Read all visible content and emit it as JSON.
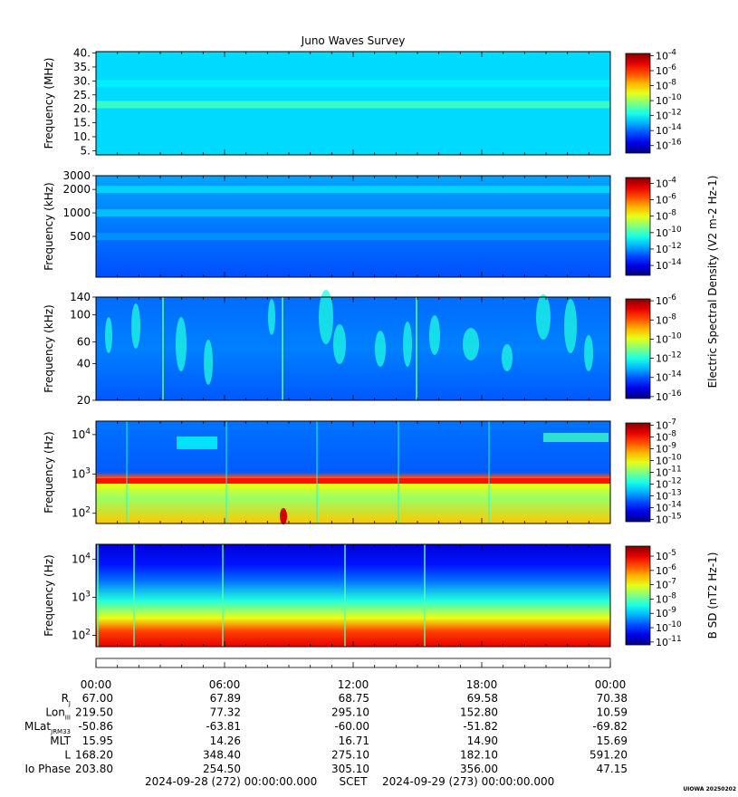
{
  "title": "Juno Waves Survey",
  "chart_data": [
    {
      "type": "heatmap",
      "ylabel": "Frequency (MHz)",
      "y_ticks": [
        "40.",
        "35.",
        "30.",
        "25.",
        "20.",
        "15.",
        "10.",
        "5."
      ],
      "yscale": "linear",
      "ylim": [
        3.5,
        40.5
      ],
      "colorbar_ticks": [
        "10^-4",
        "10^-6",
        "10^-8",
        "10^-10",
        "10^-12",
        "10^-14",
        "10^-16"
      ],
      "colorbar_range": [
        -17,
        -3.7
      ],
      "background_level": -12.5,
      "bands": [
        {
          "freq": 21.5,
          "level": -11.2
        },
        {
          "freq": 29,
          "level": -12.2
        }
      ]
    },
    {
      "type": "heatmap",
      "ylabel": "Frequency (kHz)",
      "y_ticks": [
        "3000",
        "2000",
        "1000",
        "500"
      ],
      "yscale": "log",
      "ylim": [
        150,
        3000
      ],
      "colorbar_ticks": [
        "10^-4",
        "10^-6",
        "10^-8",
        "10^-10",
        "10^-12",
        "10^-14"
      ],
      "colorbar_label": "Electric Spectral Density (V^2 m^-2 Hz^-1)",
      "colorbar_range": [
        -15.2,
        -3.3
      ],
      "background_level": -12.3,
      "bands": [
        {
          "freq": 2000,
          "level": -11.2
        },
        {
          "freq": 1000,
          "level": -11.4
        },
        {
          "freq": 500,
          "level": -12.0
        }
      ]
    },
    {
      "type": "heatmap",
      "ylabel": "Frequency (kHz)",
      "y_ticks": [
        "140",
        "100",
        "60",
        "40",
        "20"
      ],
      "yscale": "log",
      "ylim": [
        20,
        140
      ],
      "colorbar_ticks": [
        "10^-6",
        "10^-8",
        "10^-10",
        "10^-12",
        "10^-14",
        "10^-16"
      ],
      "colorbar_range": [
        -16.2,
        -5.8
      ],
      "background_level": -13.7
    },
    {
      "type": "heatmap",
      "ylabel": "Frequency (Hz)",
      "y_ticks": [
        "10^4",
        "10^3",
        "10^2"
      ],
      "yscale": "log",
      "ylim": [
        55,
        22000
      ],
      "colorbar_ticks": [
        "10^-7",
        "10^-8",
        "10^-9",
        "10^-10",
        "10^-11",
        "10^-12",
        "10^-13",
        "10^-14",
        "10^-15"
      ],
      "colorbar_range": [
        -15.2,
        -6.8
      ],
      "background_level": -13.0
    },
    {
      "type": "heatmap",
      "ylabel": "Frequency (Hz)",
      "y_ticks": [
        "10^4",
        "10^3",
        "10^2"
      ],
      "yscale": "log",
      "ylim": [
        50,
        25000
      ],
      "colorbar_ticks": [
        "10^-5",
        "10^-6",
        "10^-7",
        "10^-8",
        "10^-9",
        "10^-10",
        "10^-11"
      ],
      "colorbar_label": "B SD (nT^2 Hz^-1)",
      "colorbar_range": [
        -11.2,
        -4.3
      ],
      "background_level": -9.0
    }
  ],
  "ephemeris": {
    "times": [
      "00:00",
      "06:00",
      "12:00",
      "18:00",
      "00:00"
    ],
    "rows": [
      {
        "label": "R",
        "sub": "J",
        "values": [
          "67.00",
          "67.89",
          "68.75",
          "69.58",
          "70.38"
        ]
      },
      {
        "label": "Lon",
        "sub": "III",
        "values": [
          "219.50",
          "77.32",
          "295.10",
          "152.80",
          "10.59"
        ]
      },
      {
        "label": "MLat",
        "sub": "JRM33",
        "values": [
          "-50.86",
          "-63.81",
          "-60.00",
          "-51.82",
          "-69.82"
        ]
      },
      {
        "label": "MLT",
        "sub": "",
        "values": [
          "15.95",
          "14.26",
          "16.71",
          "14.90",
          "15.69"
        ]
      },
      {
        "label": "L",
        "sub": "",
        "values": [
          "168.20",
          "348.40",
          "275.10",
          "182.10",
          "591.20"
        ]
      },
      {
        "label": "Io Phase",
        "sub": "",
        "values": [
          "203.80",
          "254.50",
          "305.10",
          "356.00",
          "47.15"
        ]
      }
    ],
    "start": "2024-09-28 (272) 00:00:00.000",
    "scet": "SCET",
    "end": "2024-09-29 (273) 00:00:00.000"
  },
  "footer_stamp": "UIOWA 20250202"
}
